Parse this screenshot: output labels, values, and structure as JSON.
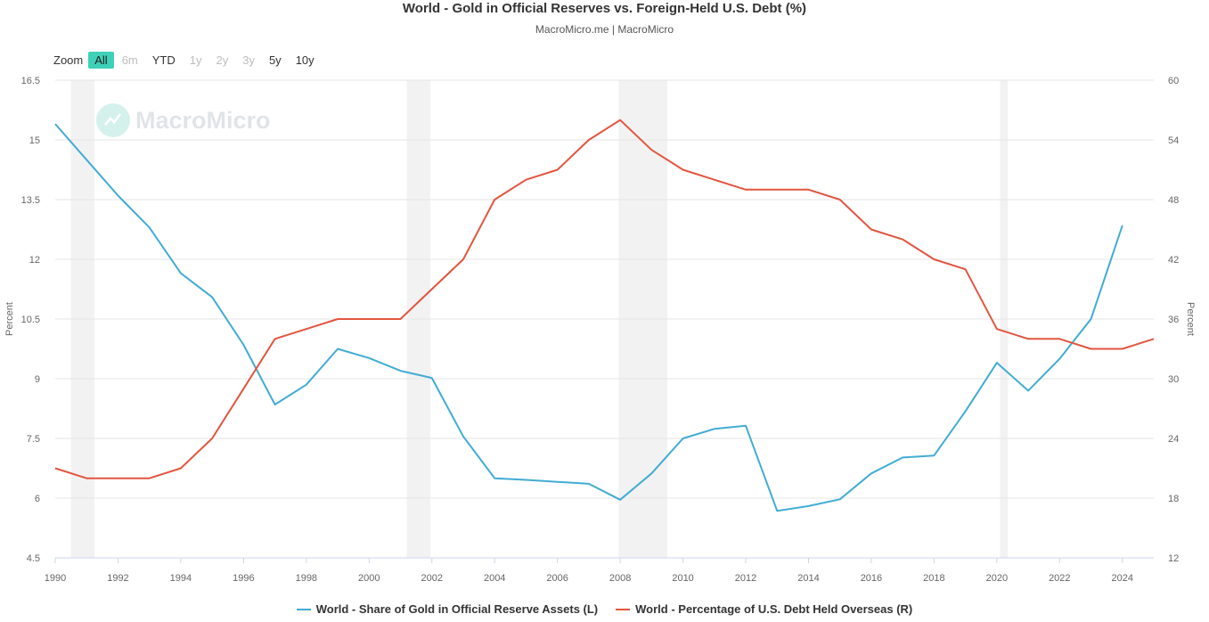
{
  "header": {
    "title": "World - Gold in Official Reserves vs. Foreign-Held U.S. Debt (%)",
    "subtitle": "MacroMicro.me | MacroMicro"
  },
  "zoom": {
    "label": "Zoom",
    "buttons": [
      {
        "label": "All",
        "state": "active"
      },
      {
        "label": "6m",
        "state": "disabled"
      },
      {
        "label": "YTD",
        "state": "enabled"
      },
      {
        "label": "1y",
        "state": "disabled"
      },
      {
        "label": "2y",
        "state": "disabled"
      },
      {
        "label": "3y",
        "state": "disabled"
      },
      {
        "label": "5y",
        "state": "enabled"
      },
      {
        "label": "10y",
        "state": "enabled"
      }
    ]
  },
  "watermark": {
    "text": "MacroMicro"
  },
  "colors": {
    "left_series": "#41acd4",
    "right_series": "#e2553f",
    "recession": "#f2f2f2",
    "zoom_active": "#3fd0b8"
  },
  "chart_data": {
    "type": "line",
    "xlim": [
      1990,
      2025
    ],
    "x_ticks": [
      1990,
      1992,
      1994,
      1996,
      1998,
      2000,
      2002,
      2004,
      2006,
      2008,
      2010,
      2012,
      2014,
      2016,
      2018,
      2020,
      2022,
      2024
    ],
    "y_left": {
      "label": "Percent",
      "range": [
        4.5,
        16.5
      ],
      "ticks": [
        4.5,
        6,
        7.5,
        9,
        10.5,
        12,
        13.5,
        15,
        16.5
      ]
    },
    "y_right": {
      "label": "Percent",
      "range": [
        12,
        60
      ],
      "ticks": [
        12,
        18,
        24,
        30,
        36,
        42,
        48,
        54,
        60
      ]
    },
    "grid": true,
    "legend_position": "bottom-center",
    "shaded_ranges": [
      [
        1990.5,
        1991.25
      ],
      [
        2001.2,
        2001.95
      ],
      [
        2007.95,
        2009.5
      ],
      [
        2020.1,
        2020.35
      ]
    ],
    "series": [
      {
        "name": "World - Share of Gold in Official Reserve Assets (L)",
        "axis": "left",
        "x": [
          1990,
          1991,
          1992,
          1993,
          1994,
          1995,
          1996,
          1997,
          1998,
          1999,
          2000,
          2001,
          2002,
          2003,
          2004,
          2005,
          2006,
          2007,
          2008,
          2009,
          2010,
          2011,
          2012,
          2013,
          2014,
          2015,
          2016,
          2017,
          2018,
          2019,
          2020,
          2021,
          2022,
          2023,
          2024
        ],
        "y": [
          15.4,
          14.5,
          13.6,
          12.8,
          11.65,
          11.05,
          9.85,
          8.35,
          8.85,
          9.75,
          9.52,
          9.2,
          9.02,
          7.55,
          6.5,
          6.46,
          6.41,
          6.36,
          5.96,
          6.62,
          7.5,
          7.74,
          7.82,
          5.68,
          5.8,
          5.97,
          6.62,
          7.02,
          7.07,
          8.18,
          9.4,
          8.7,
          9.5,
          10.5,
          12.85
        ]
      },
      {
        "name": "World - Percentage of U.S. Debt Held Overseas (R)",
        "axis": "right",
        "x": [
          1990,
          1991,
          1992,
          1993,
          1994,
          1995,
          1996,
          1997,
          1998,
          1999,
          2000,
          2001,
          2002,
          2003,
          2004,
          2005,
          2006,
          2007,
          2008,
          2009,
          2010,
          2011,
          2012,
          2013,
          2014,
          2015,
          2016,
          2017,
          2018,
          2019,
          2020,
          2021,
          2022,
          2023,
          2024,
          2025
        ],
        "y": [
          21,
          20,
          20,
          20,
          21,
          24,
          29,
          34,
          35,
          36,
          36,
          36,
          39,
          42,
          48,
          50,
          51,
          54,
          56,
          53,
          51,
          50,
          49,
          49,
          49,
          48,
          45,
          44,
          42,
          41,
          35,
          34,
          34,
          33,
          33,
          34
        ]
      }
    ]
  }
}
